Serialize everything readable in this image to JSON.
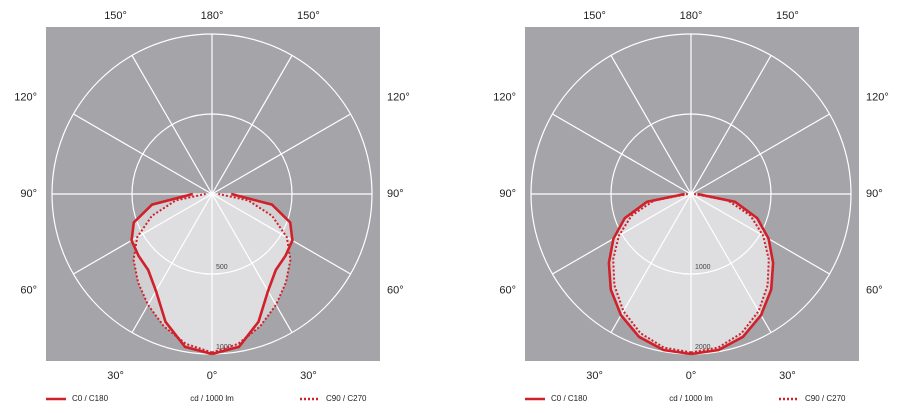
{
  "chart_data": [
    {
      "type": "polar",
      "angles": [
        0,
        10,
        20,
        30,
        40,
        50,
        60,
        70,
        80,
        90
      ],
      "series": [
        {
          "name": "C0 / C180",
          "color": "#d0202a",
          "dash": "solid",
          "values": [
            1000,
            970,
            850,
            700,
            620,
            600,
            580,
            520,
            380,
            120
          ]
        },
        {
          "name": "C90 / C270",
          "color": "#d0202a",
          "dash": "dotted",
          "values": [
            990,
            950,
            880,
            800,
            720,
            640,
            540,
            400,
            230,
            40
          ]
        }
      ],
      "rlim": [
        0,
        1000
      ],
      "rticks": [
        500,
        1000
      ],
      "angle_ticks": [
        {
          "value": 0,
          "label": "0°"
        },
        {
          "value": 30,
          "label": "30°"
        },
        {
          "value": 60,
          "label": "60°"
        },
        {
          "value": 90,
          "label": "90°"
        },
        {
          "value": 120,
          "label": "120°"
        },
        {
          "value": 150,
          "label": "150°"
        },
        {
          "value": 180,
          "label": "180°"
        }
      ],
      "unit_label": "cd / 1000 lm"
    },
    {
      "type": "polar",
      "angles": [
        0,
        10,
        20,
        30,
        40,
        50,
        60,
        70,
        80,
        90
      ],
      "series": [
        {
          "name": "C0 / C180",
          "color": "#d0202a",
          "dash": "solid",
          "values": [
            2000,
            1980,
            1900,
            1750,
            1560,
            1340,
            1120,
            880,
            560,
            80
          ]
        },
        {
          "name": "C90 / C270",
          "color": "#d0202a",
          "dash": "dotted",
          "values": [
            1980,
            1950,
            1850,
            1690,
            1490,
            1270,
            1040,
            790,
            470,
            40
          ]
        }
      ],
      "rlim": [
        0,
        2000
      ],
      "rticks": [
        1000,
        2000
      ],
      "angle_ticks": [
        {
          "value": 0,
          "label": "0°"
        },
        {
          "value": 30,
          "label": "30°"
        },
        {
          "value": 60,
          "label": "60°"
        },
        {
          "value": 90,
          "label": "90°"
        },
        {
          "value": 120,
          "label": "120°"
        },
        {
          "value": 150,
          "label": "150°"
        },
        {
          "value": 180,
          "label": "180°"
        }
      ],
      "unit_label": "cd / 1000 lm"
    }
  ]
}
